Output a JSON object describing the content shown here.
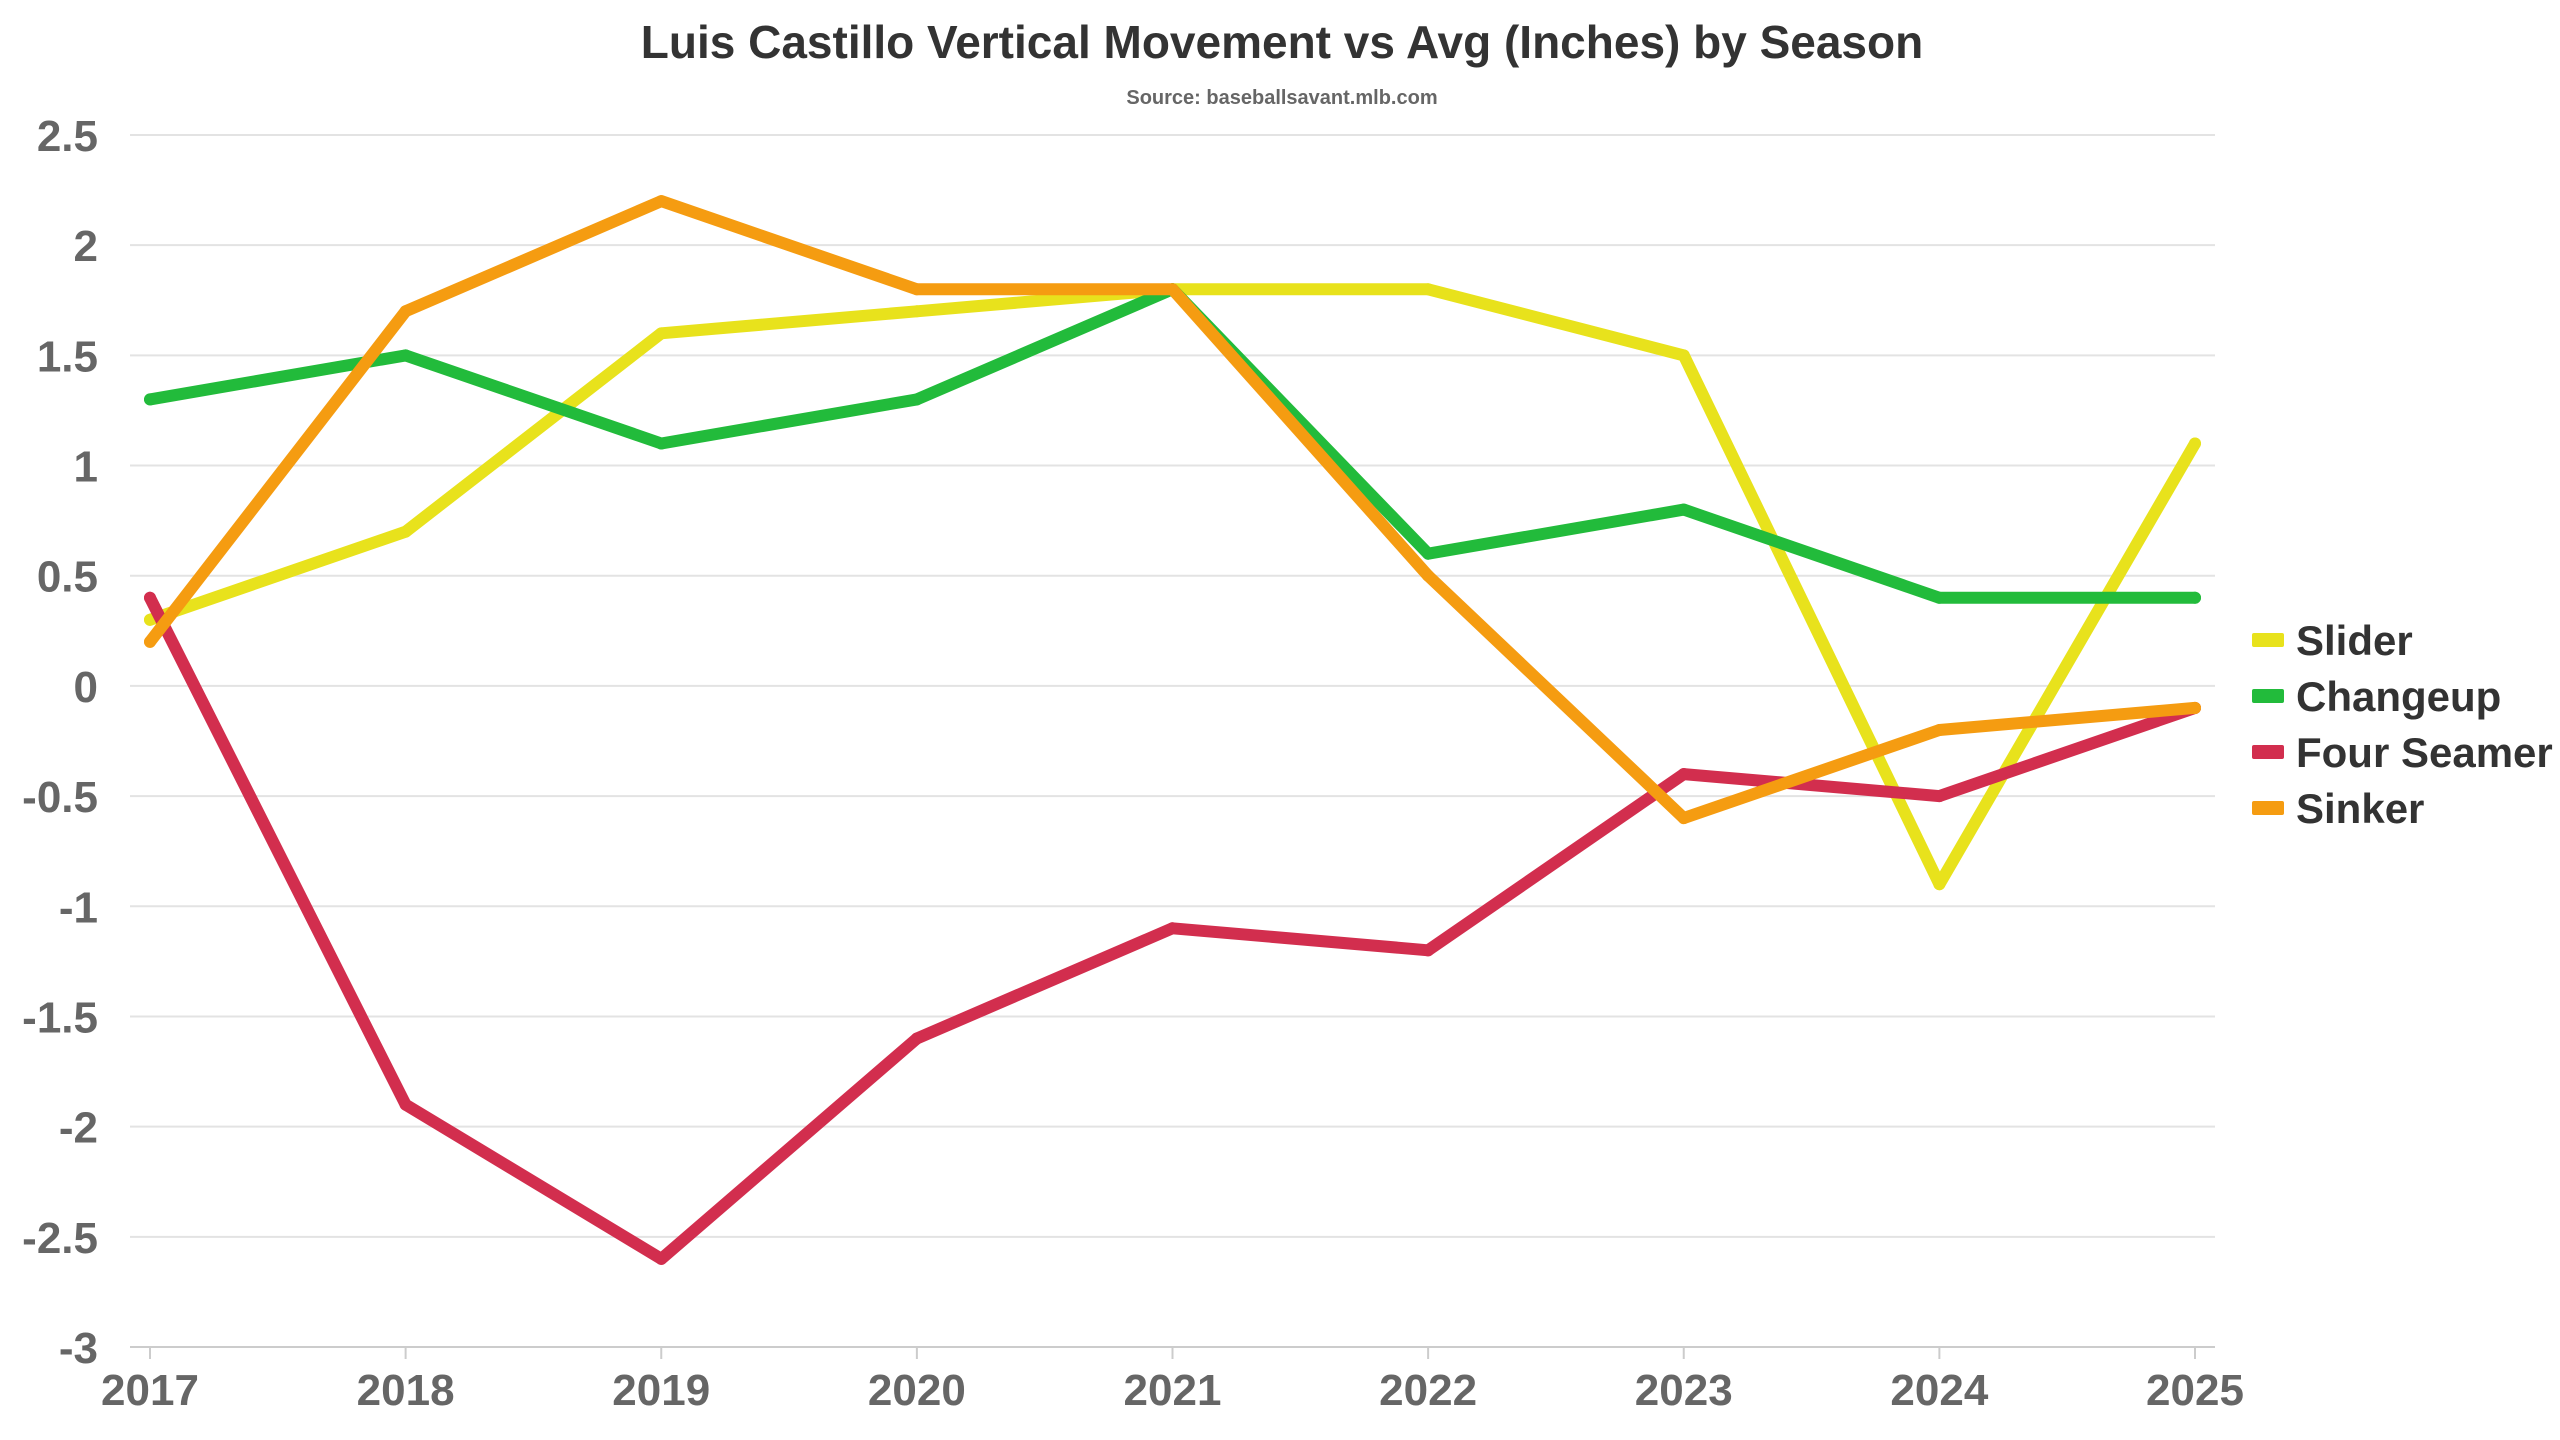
{
  "chart_data": {
    "type": "line",
    "title": "Luis Castillo Vertical Movement vs Avg (Inches) by Season",
    "subtitle": "Source: baseballsavant.mlb.com",
    "xlabel": "",
    "ylabel": "",
    "x": [
      "2017",
      "2018",
      "2019",
      "2020",
      "2021",
      "2022",
      "2023",
      "2024",
      "2025"
    ],
    "ylim": [
      -3,
      2.5
    ],
    "yticks": [
      "2.5",
      "2",
      "1.5",
      "1",
      "0.5",
      "0",
      "-0.5",
      "-1",
      "-1.5",
      "-2",
      "-2.5",
      "-3"
    ],
    "grid": true,
    "legend_position": "right",
    "series": [
      {
        "name": "Slider",
        "color": "#e8e21c",
        "values": [
          0.3,
          0.7,
          1.6,
          1.7,
          1.8,
          1.8,
          1.5,
          -0.9,
          1.1
        ]
      },
      {
        "name": "Changeup",
        "color": "#22bb3b",
        "values": [
          1.3,
          1.5,
          1.1,
          1.3,
          1.8,
          0.6,
          0.8,
          0.4,
          0.4
        ]
      },
      {
        "name": "Four Seamer",
        "color": "#d22e4e",
        "values": [
          0.4,
          -1.9,
          -2.6,
          -1.6,
          -1.1,
          -1.2,
          -0.4,
          -0.5,
          -0.1
        ]
      },
      {
        "name": "Sinker",
        "color": "#f59c11",
        "values": [
          0.2,
          1.7,
          2.2,
          1.8,
          1.8,
          0.5,
          -0.6,
          -0.2,
          -0.1
        ]
      }
    ]
  }
}
